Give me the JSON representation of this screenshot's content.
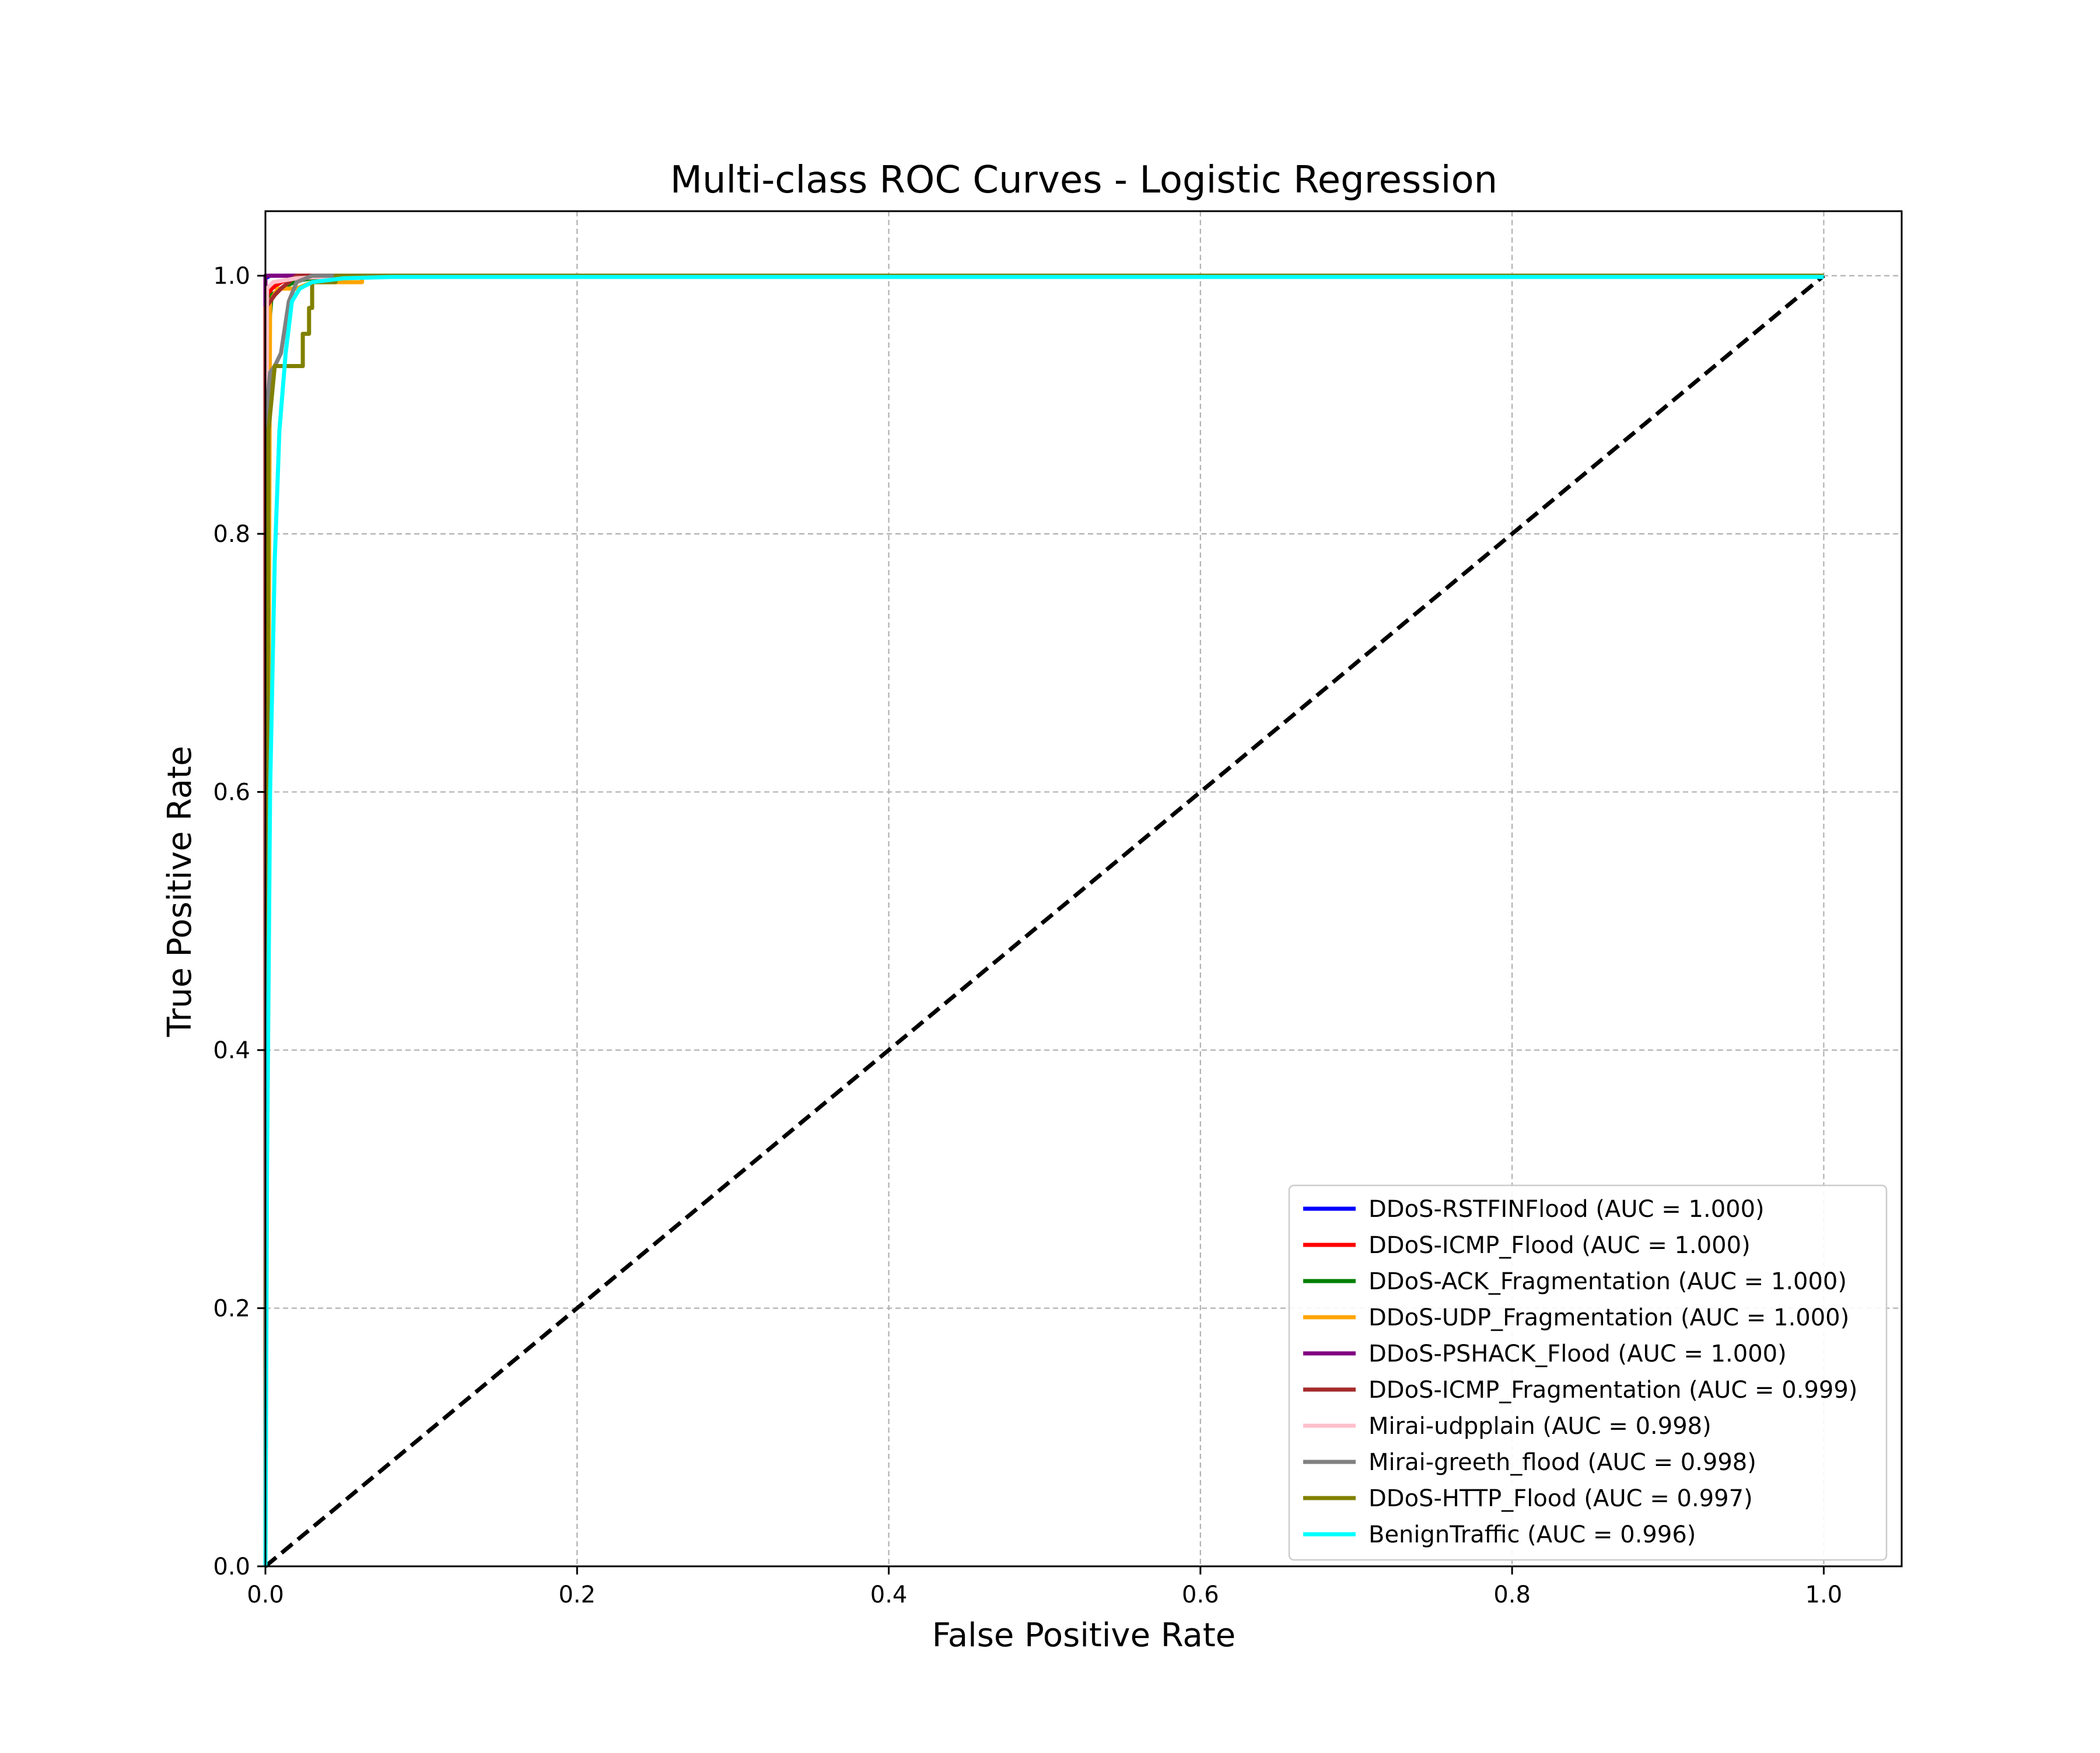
{
  "chart_data": {
    "type": "line",
    "title": "Multi-class ROC Curves - Logistic Regression",
    "xlabel": "False Positive Rate",
    "ylabel": "True Positive Rate",
    "xlim": [
      0.0,
      1.05
    ],
    "ylim": [
      0.0,
      1.05
    ],
    "xticks": [
      0.0,
      0.2,
      0.4,
      0.6,
      0.8,
      1.0
    ],
    "yticks": [
      0.0,
      0.2,
      0.4,
      0.6,
      0.8,
      1.0
    ],
    "xtick_labels": [
      "0.0",
      "0.2",
      "0.4",
      "0.6",
      "0.8",
      "1.0"
    ],
    "ytick_labels": [
      "0.0",
      "0.2",
      "0.4",
      "0.6",
      "0.8",
      "1.0"
    ],
    "grid": true,
    "legend_position": "lower-right",
    "diagonal": {
      "x": [
        0,
        1
      ],
      "y": [
        0,
        1
      ],
      "color": "#000000",
      "style": "dashed"
    },
    "series": [
      {
        "name": "DDoS-RSTFINFlood (AUC = 1.000)",
        "color": "#0000ff",
        "x": [
          0,
          0,
          0.003,
          1.0
        ],
        "y": [
          0,
          0.998,
          1.0,
          1.0
        ]
      },
      {
        "name": "DDoS-ICMP_Flood (AUC = 1.000)",
        "color": "#ff0000",
        "x": [
          0,
          0,
          0.002,
          0.004,
          0.01,
          0.02,
          1.0
        ],
        "y": [
          0,
          0.98,
          0.985,
          0.99,
          0.995,
          1.0,
          1.0
        ]
      },
      {
        "name": "DDoS-ACK_Fragmentation (AUC = 1.000)",
        "color": "#008000",
        "x": [
          0,
          0.001,
          0.004,
          0.01,
          0.02,
          0.04,
          1.0
        ],
        "y": [
          0,
          0.94,
          0.985,
          0.99,
          0.996,
          1.0,
          1.0
        ]
      },
      {
        "name": "DDoS-UDP_Fragmentation (AUC = 1.000)",
        "color": "#ffa500",
        "x": [
          0,
          0.003,
          0.008,
          0.02,
          0.03,
          0.062,
          0.062,
          1.0
        ],
        "y": [
          0,
          0.98,
          0.99,
          0.99,
          0.995,
          0.995,
          1.0,
          1.0
        ]
      },
      {
        "name": "DDoS-PSHACK_Flood (AUC = 1.000)",
        "color": "#800080",
        "x": [
          0,
          0,
          0.02,
          1.0
        ],
        "y": [
          0,
          1.0,
          1.0,
          1.0
        ]
      },
      {
        "name": "DDoS-ICMP_Fragmentation (AUC = 0.999)",
        "color": "#a52a2a",
        "x": [
          0,
          0,
          0.003,
          0.006,
          0.01,
          0.02,
          1.0
        ],
        "y": [
          0,
          0.975,
          0.98,
          0.985,
          0.99,
          1.0,
          1.0
        ]
      },
      {
        "name": "Mirai-udpplain (AUC = 0.998)",
        "color": "#ffc0cb",
        "x": [
          0,
          0.001,
          0.005,
          0.02,
          0.05,
          1.0
        ],
        "y": [
          0,
          0.99,
          0.995,
          0.998,
          1.0,
          1.0
        ]
      },
      {
        "name": "Mirai-greeth_flood (AUC = 0.998)",
        "color": "#808080",
        "x": [
          0,
          0.001,
          0.003,
          0.006,
          0.01,
          0.015,
          0.02,
          0.03,
          1.0
        ],
        "y": [
          0,
          0.9,
          0.925,
          0.93,
          0.94,
          0.98,
          0.995,
          1.0,
          1.0
        ]
      },
      {
        "name": "DDoS-HTTP_Flood (AUC = 0.997)",
        "color": "#808000",
        "x": [
          0,
          0.002,
          0.004,
          0.006,
          0.01,
          0.024,
          0.024,
          0.028,
          0.028,
          0.03,
          0.03,
          0.045,
          0.045,
          1.0
        ],
        "y": [
          0,
          0.88,
          0.905,
          0.93,
          0.93,
          0.93,
          0.955,
          0.955,
          0.975,
          0.975,
          0.995,
          0.995,
          1.0,
          1.0
        ]
      },
      {
        "name": "BenignTraffic (AUC = 0.996)",
        "color": "#00ffff",
        "x": [
          0,
          0.001,
          0.003,
          0.006,
          0.009,
          0.013,
          0.017,
          0.022,
          0.03,
          0.05,
          0.08,
          1.0
        ],
        "y": [
          0,
          0.3,
          0.6,
          0.78,
          0.88,
          0.94,
          0.98,
          0.99,
          0.995,
          0.998,
          0.999,
          0.999
        ]
      }
    ]
  }
}
